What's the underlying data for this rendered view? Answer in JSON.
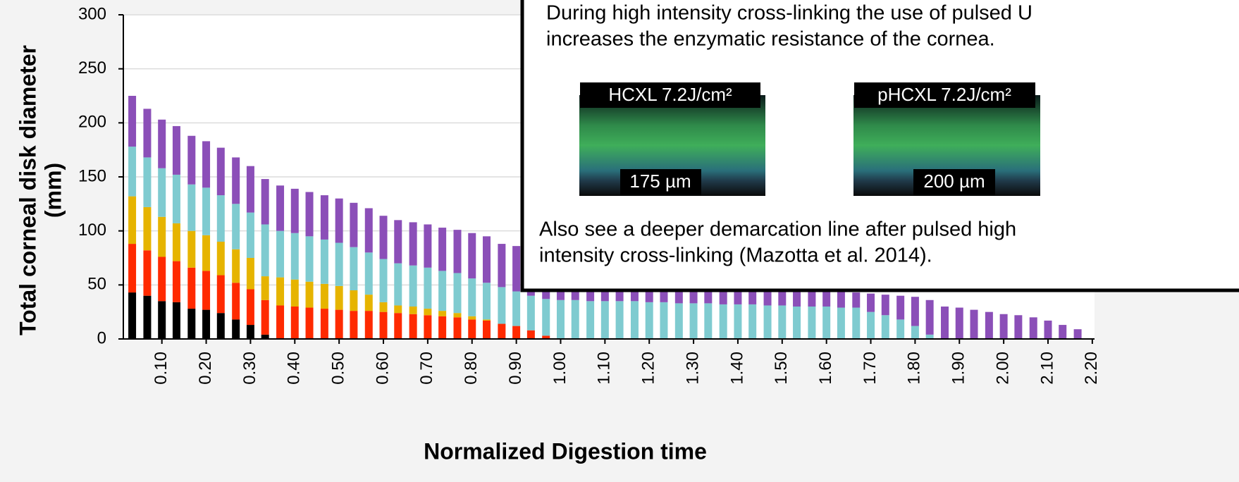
{
  "chart_data": {
    "type": "stacked-bar",
    "x_label": "Normalized Digestion time",
    "y_label": [
      "Total corneal disk diameter",
      "(mm)"
    ],
    "x": [
      0.033,
      0.067,
      0.1,
      0.133,
      0.167,
      0.2,
      0.233,
      0.267,
      0.3,
      0.333,
      0.367,
      0.4,
      0.433,
      0.467,
      0.5,
      0.533,
      0.567,
      0.6,
      0.633,
      0.667,
      0.7,
      0.733,
      0.767,
      0.8,
      0.833,
      0.867,
      0.9,
      0.933,
      0.967,
      1.0,
      1.033,
      1.067,
      1.1,
      1.133,
      1.167,
      1.2,
      1.233,
      1.267,
      1.3,
      1.333,
      1.367,
      1.4,
      1.433,
      1.467,
      1.5,
      1.533,
      1.567,
      1.6,
      1.633,
      1.667,
      1.7,
      1.733,
      1.767,
      1.8,
      1.833,
      1.867,
      1.9,
      1.933,
      1.967,
      2.0,
      2.033,
      2.067,
      2.1,
      2.133,
      2.167
    ],
    "series": [
      {
        "color": "#000000",
        "values": [
          43,
          40,
          35,
          34,
          28,
          27,
          24,
          18,
          13,
          4,
          0,
          0,
          0,
          0,
          0,
          0,
          0,
          0,
          0,
          0,
          0,
          0,
          0,
          0,
          0,
          0,
          0,
          0,
          0,
          0,
          0,
          0,
          0,
          0,
          0,
          0,
          0,
          0,
          0,
          0,
          0,
          0,
          0,
          0,
          0,
          0,
          0,
          0,
          0,
          0,
          0,
          0,
          0,
          0,
          0,
          0,
          0,
          0,
          0,
          0,
          0,
          0,
          0,
          0,
          0
        ]
      },
      {
        "color": "#ff2a00",
        "values": [
          45,
          42,
          41,
          38,
          38,
          36,
          35,
          34,
          33,
          32,
          31,
          30,
          29,
          28,
          27,
          26,
          26,
          25,
          24,
          23,
          22,
          21,
          20,
          18,
          17,
          14,
          12,
          8,
          3,
          0,
          0,
          0,
          0,
          0,
          0,
          0,
          0,
          0,
          0,
          0,
          0,
          0,
          0,
          0,
          0,
          0,
          0,
          0,
          0,
          0,
          0,
          0,
          0,
          0,
          0,
          0,
          0,
          0,
          0,
          0,
          0,
          0,
          0,
          0,
          0
        ]
      },
      {
        "color": "#e6b400",
        "values": [
          44,
          40,
          37,
          35,
          34,
          33,
          31,
          31,
          29,
          22,
          26,
          25,
          24,
          23,
          22,
          19,
          15,
          9,
          7,
          7,
          6,
          5,
          4,
          3,
          1,
          0,
          0,
          0,
          0,
          0,
          0,
          0,
          0,
          0,
          0,
          0,
          0,
          0,
          0,
          0,
          0,
          0,
          0,
          0,
          0,
          0,
          0,
          0,
          0,
          0,
          0,
          0,
          0,
          0,
          0,
          0,
          0,
          0,
          0,
          0,
          0,
          0,
          0,
          0,
          0
        ]
      },
      {
        "color": "#7fcbd0",
        "values": [
          46,
          46,
          45,
          45,
          43,
          44,
          43,
          42,
          42,
          48,
          43,
          43,
          42,
          41,
          40,
          40,
          39,
          40,
          39,
          38,
          38,
          37,
          37,
          35,
          34,
          34,
          32,
          32,
          34,
          36,
          36,
          35,
          35,
          35,
          35,
          34,
          34,
          33,
          33,
          33,
          32,
          32,
          32,
          31,
          31,
          30,
          30,
          30,
          29,
          29,
          25,
          22,
          18,
          12,
          4,
          0,
          0,
          0,
          0,
          0,
          0,
          0,
          0,
          0,
          0
        ]
      },
      {
        "color": "#8b4fb8",
        "values": [
          47,
          45,
          45,
          45,
          45,
          43,
          44,
          43,
          43,
          42,
          42,
          41,
          41,
          41,
          41,
          41,
          41,
          40,
          40,
          40,
          40,
          40,
          40,
          42,
          43,
          40,
          42,
          44,
          45,
          44,
          42,
          41,
          39,
          37,
          35,
          34,
          32,
          31,
          29,
          27,
          26,
          24,
          22,
          21,
          19,
          18,
          16,
          15,
          15,
          14,
          17,
          19,
          22,
          27,
          32,
          30,
          29,
          27,
          25,
          23,
          22,
          20,
          17,
          13,
          9
        ]
      }
    ],
    "xlim": [
      0.013,
      2.205
    ],
    "xticks": [
      {
        "value": 0.1,
        "label": "0.10"
      },
      {
        "value": 0.2,
        "label": "0.20"
      },
      {
        "value": 0.3,
        "label": "0.30"
      },
      {
        "value": 0.4,
        "label": "0.40"
      },
      {
        "value": 0.5,
        "label": "0.50"
      },
      {
        "value": 0.6,
        "label": "0.60"
      },
      {
        "value": 0.7,
        "label": "0.70"
      },
      {
        "value": 0.8,
        "label": "0.80"
      },
      {
        "value": 0.9,
        "label": "0.90"
      },
      {
        "value": 1.0,
        "label": "1.00"
      },
      {
        "value": 1.1,
        "label": "1.10"
      },
      {
        "value": 1.2,
        "label": "1.20"
      },
      {
        "value": 1.3,
        "label": "1.30"
      },
      {
        "value": 1.4,
        "label": "1.40"
      },
      {
        "value": 1.5,
        "label": "1.50"
      },
      {
        "value": 1.6,
        "label": "1.60"
      },
      {
        "value": 1.7,
        "label": "1.70"
      },
      {
        "value": 1.8,
        "label": "1.80"
      },
      {
        "value": 1.9,
        "label": "1.90"
      },
      {
        "value": 2.0,
        "label": "2.00"
      },
      {
        "value": 2.1,
        "label": "2.10"
      },
      {
        "value": 2.2,
        "label": "2.20"
      }
    ],
    "ylim": [
      0,
      300
    ],
    "yticks": [
      0,
      50,
      100,
      150,
      200,
      250,
      300
    ],
    "grid": true
  },
  "inset": {
    "text": [
      "During high intensity cross-linking the use of pulsed U",
      "increases the enzymatic resistance of the cornea."
    ],
    "images": [
      {
        "title": "HCXL 7.2J/cm²",
        "caption": "175 µm"
      },
      {
        "title": "pHCXL 7.2J/cm²",
        "caption": "200 µm"
      }
    ],
    "note": [
      "Also see a deeper demarcation line after pulsed high",
      "intensity cross-linking (Mazotta et al. 2014)."
    ]
  }
}
